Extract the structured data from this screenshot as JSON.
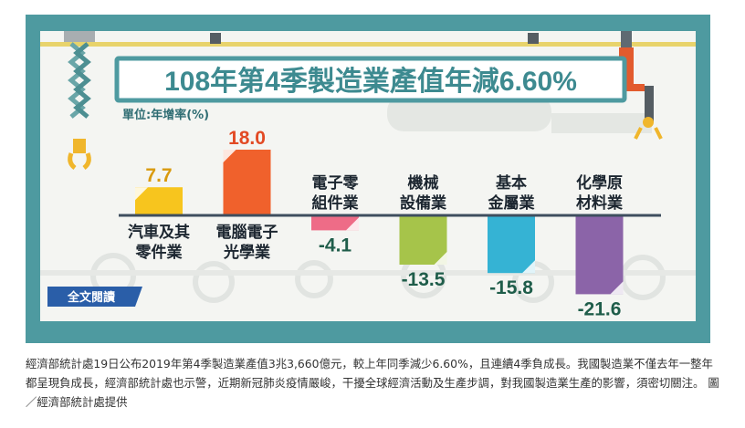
{
  "figure": {
    "title": "108年第4季製造業產值年減6.60%",
    "unit_label": "單位:年增率(%)",
    "read_more_button": "全文閱讀"
  },
  "chart_data": {
    "type": "bar",
    "title": "108年第4季製造業產值年減6.60%",
    "ylabel": "單位:年增率(%)",
    "categories": [
      "汽車及其零件業",
      "電腦電子光學業",
      "電子零組件業",
      "機械設備業",
      "基本金屬業",
      "化學原材料業"
    ],
    "category_lines": [
      [
        "汽車及其",
        "零件業"
      ],
      [
        "電腦電子",
        "光學業"
      ],
      [
        "電子零",
        "組件業"
      ],
      [
        "機械",
        "設備業"
      ],
      [
        "基本",
        "金屬業"
      ],
      [
        "化學原",
        "材料業"
      ]
    ],
    "values": [
      7.7,
      18.0,
      -4.1,
      -13.5,
      -15.8,
      -21.6
    ],
    "value_labels": [
      "7.7",
      "18.0",
      "-4.1",
      "-13.5",
      "-15.8",
      "-21.6"
    ],
    "colors": [
      "#f7c51e",
      "#f0612c",
      "#ee6c87",
      "#a6c44a",
      "#35b3d4",
      "#8b64a8"
    ],
    "ylim": [
      -23,
      20
    ]
  },
  "caption": "經濟部統計處19日公布2019年第4季製造業產值3兆3,660億元，較上年同季減少6.60%，且連續4季負成長。我國製造業不僅去年一整年都呈現負成長，經濟部統計處也示警，近期新冠肺炎疫情嚴峻，干擾全球經濟活動及生產步調，對我國製造業生產的影響，須密切關注。 圖／經濟部統計處提供"
}
